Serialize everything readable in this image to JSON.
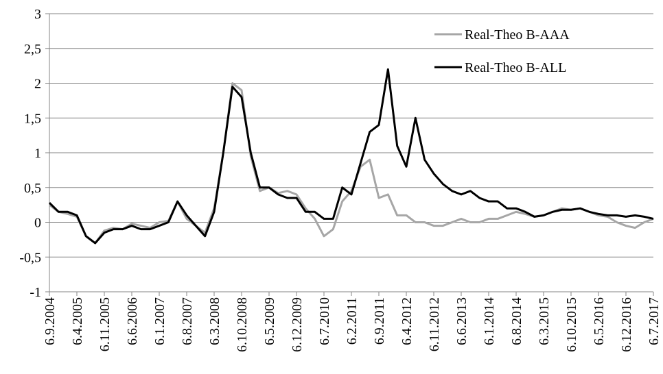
{
  "chart_data": {
    "type": "line",
    "categories": [
      "6.9.2004",
      null,
      null,
      "6.4.2005",
      null,
      null,
      "6.11.2005",
      null,
      null,
      "6.6.2006",
      null,
      null,
      "6.1.2007",
      null,
      null,
      "6.8.2007",
      null,
      null,
      "6.3.2008",
      null,
      null,
      "6.10.2008",
      null,
      null,
      "6.5.2009",
      null,
      null,
      "6.12.2009",
      null,
      null,
      "6.7.2010",
      null,
      null,
      "6.2.2011",
      null,
      null,
      "6.9.2011",
      null,
      null,
      "6.4.2012",
      null,
      null,
      "6.11.2012",
      null,
      null,
      "6.6.2013",
      null,
      null,
      "6.1.2014",
      null,
      null,
      "6.8.2014",
      null,
      null,
      "6.3.2015",
      null,
      null,
      "6.10.2015",
      null,
      null,
      "6.5.2016",
      null,
      null,
      "6.12.2016",
      null,
      null,
      "6.7.2017"
    ],
    "series": [
      {
        "name": "Real-Theo B-AAA",
        "color": "#a6a6a6",
        "values": [
          0.25,
          0.15,
          0.12,
          0.08,
          -0.2,
          -0.3,
          -0.12,
          -0.08,
          -0.1,
          -0.02,
          -0.05,
          -0.08,
          0.0,
          0.02,
          0.3,
          0.05,
          -0.05,
          -0.15,
          0.2,
          1.0,
          2.0,
          1.9,
          0.95,
          0.45,
          0.5,
          0.42,
          0.45,
          0.4,
          0.2,
          0.05,
          -0.2,
          -0.1,
          0.3,
          0.45,
          0.8,
          0.9,
          0.35,
          0.4,
          0.1,
          0.1,
          0.0,
          0.0,
          -0.05,
          -0.05,
          0.0,
          0.05,
          0.0,
          0.0,
          0.05,
          0.05,
          0.1,
          0.15,
          0.12,
          0.08,
          0.1,
          0.15,
          0.2,
          0.18,
          0.2,
          0.15,
          0.1,
          0.08,
          0.0,
          -0.05,
          -0.08,
          0.0,
          0.05
        ]
      },
      {
        "name": "Real-Theo B-ALL",
        "color": "#000000",
        "values": [
          0.28,
          0.15,
          0.15,
          0.1,
          -0.2,
          -0.3,
          -0.15,
          -0.1,
          -0.1,
          -0.05,
          -0.1,
          -0.1,
          -0.05,
          0.0,
          0.3,
          0.1,
          -0.05,
          -0.2,
          0.15,
          1.0,
          1.95,
          1.8,
          1.0,
          0.5,
          0.5,
          0.4,
          0.35,
          0.35,
          0.15,
          0.15,
          0.05,
          0.05,
          0.5,
          0.4,
          0.85,
          1.3,
          1.4,
          2.2,
          1.1,
          0.8,
          1.5,
          0.9,
          0.7,
          0.55,
          0.45,
          0.4,
          0.45,
          0.35,
          0.3,
          0.3,
          0.2,
          0.2,
          0.15,
          0.08,
          0.1,
          0.15,
          0.18,
          0.18,
          0.2,
          0.15,
          0.12,
          0.1,
          0.1,
          0.08,
          0.1,
          0.08,
          0.05
        ]
      }
    ],
    "ylim": [
      -1,
      3
    ],
    "yticks": [
      -1,
      {
        "value": -0.5,
        "label": "-0,5"
      },
      0,
      {
        "value": 0.5,
        "label": "0,5"
      },
      1,
      {
        "value": 1.5,
        "label": "1,5"
      },
      2,
      {
        "value": 2.5,
        "label": "2,5"
      },
      3
    ],
    "grid": true,
    "legend": "top-right"
  }
}
